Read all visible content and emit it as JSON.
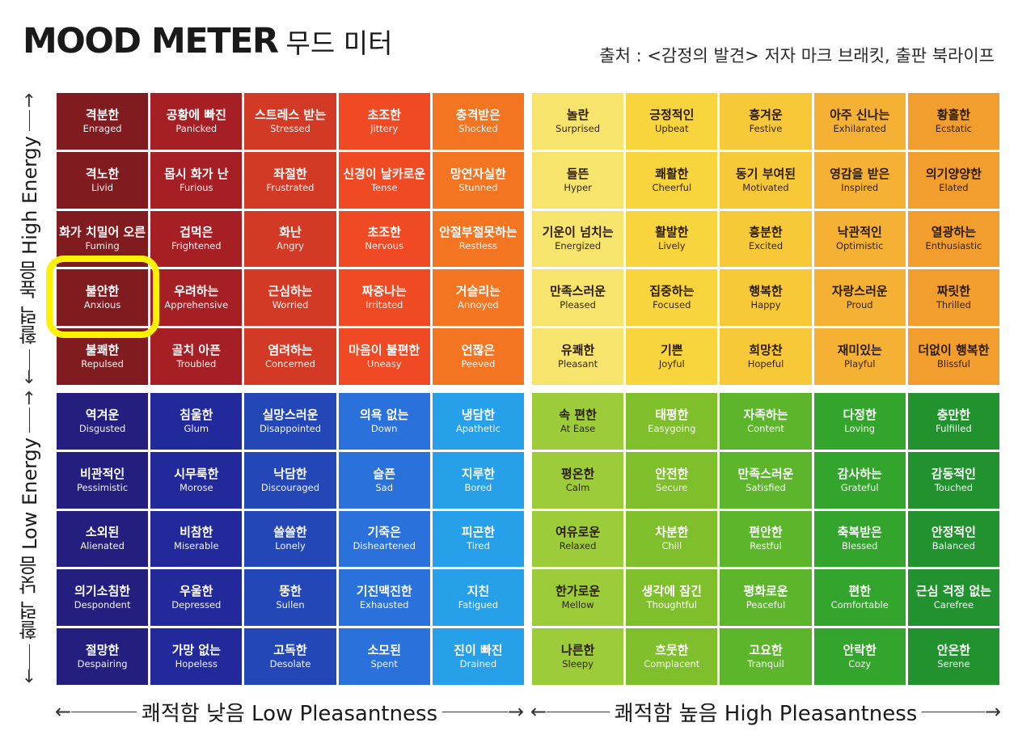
{
  "title": {
    "en": "MOOD METER",
    "ko": "무드 미터"
  },
  "source": "출처 : <감정의 발견> 저자 마크 브래킷, 출판 북라이프",
  "axes": {
    "low_pleasantness": "쾌적함 낮음 Low Pleasantness",
    "high_pleasantness": "쾌적함 높음  High Pleasantness",
    "high_energy": "활력 높음  High Energy",
    "low_energy": "활력 낮음  Low Energy",
    "arrow_left": "←",
    "arrow_right": "→",
    "arrow_up": "↑",
    "arrow_down": "↓"
  },
  "highlighted_cell": "불안한 Anxious",
  "quadrants": {
    "high_energy_low_pleasantness": [
      [
        {
          "ko": "격분한",
          "en": "Enraged",
          "color": "#801c20"
        },
        {
          "ko": "공황에 빠진",
          "en": "Panicked",
          "color": "#a61f24"
        },
        {
          "ko": "스트레스 받는",
          "en": "Stressed",
          "color": "#d23a26"
        },
        {
          "ko": "초조한",
          "en": "Jittery",
          "color": "#f04a25"
        },
        {
          "ko": "충격받은",
          "en": "Shocked",
          "color": "#f37522"
        }
      ],
      [
        {
          "ko": "격노한",
          "en": "Livid",
          "color": "#801c20"
        },
        {
          "ko": "몹시 화가 난",
          "en": "Furious",
          "color": "#a61f24"
        },
        {
          "ko": "좌절한",
          "en": "Frustrated",
          "color": "#d23a26"
        },
        {
          "ko": "신경이 날카로운",
          "en": "Tense",
          "color": "#f04a25"
        },
        {
          "ko": "망연자실한",
          "en": "Stunned",
          "color": "#f37522"
        }
      ],
      [
        {
          "ko": "화가 치밀어 오른",
          "en": "Fuming",
          "color": "#801c20"
        },
        {
          "ko": "겁먹은",
          "en": "Frightened",
          "color": "#a61f24"
        },
        {
          "ko": "화난",
          "en": "Angry",
          "color": "#d23a26"
        },
        {
          "ko": "초조한",
          "en": "Nervous",
          "color": "#f04a25"
        },
        {
          "ko": "안절부절못하는",
          "en": "Restless",
          "color": "#f37522"
        }
      ],
      [
        {
          "ko": "불안한",
          "en": "Anxious",
          "color": "#801c20"
        },
        {
          "ko": "우려하는",
          "en": "Apprehensive",
          "color": "#a61f24"
        },
        {
          "ko": "근심하는",
          "en": "Worried",
          "color": "#d23a26"
        },
        {
          "ko": "짜증나는",
          "en": "Irritated",
          "color": "#f04a25"
        },
        {
          "ko": "거슬리는",
          "en": "Annoyed",
          "color": "#f37522"
        }
      ],
      [
        {
          "ko": "불쾌한",
          "en": "Repulsed",
          "color": "#801c20"
        },
        {
          "ko": "골치 아픈",
          "en": "Troubled",
          "color": "#a61f24"
        },
        {
          "ko": "염려하는",
          "en": "Concerned",
          "color": "#d23a26"
        },
        {
          "ko": "마음이 불편한",
          "en": "Uneasy",
          "color": "#f04a25"
        },
        {
          "ko": "언짢은",
          "en": "Peeved",
          "color": "#f37522"
        }
      ]
    ],
    "high_energy_high_pleasantness": [
      [
        {
          "ko": "놀란",
          "en": "Surprised",
          "color": "#f7e46c"
        },
        {
          "ko": "긍정적인",
          "en": "Upbeat",
          "color": "#f8d53c"
        },
        {
          "ko": "흥겨운",
          "en": "Festive",
          "color": "#f7c837"
        },
        {
          "ko": "아주 신나는",
          "en": "Exhilarated",
          "color": "#f5b134"
        },
        {
          "ko": "황홀한",
          "en": "Ecstatic",
          "color": "#f29e2e"
        }
      ],
      [
        {
          "ko": "들뜬",
          "en": "Hyper",
          "color": "#f7e46c"
        },
        {
          "ko": "쾌활한",
          "en": "Cheerful",
          "color": "#f8d53c"
        },
        {
          "ko": "동기 부여된",
          "en": "Motivated",
          "color": "#f7c837"
        },
        {
          "ko": "영감을 받은",
          "en": "Inspired",
          "color": "#f5b134"
        },
        {
          "ko": "의기양양한",
          "en": "Elated",
          "color": "#f29e2e"
        }
      ],
      [
        {
          "ko": "기운이 넘치는",
          "en": "Energized",
          "color": "#f7e46c"
        },
        {
          "ko": "활발한",
          "en": "Lively",
          "color": "#f8d53c"
        },
        {
          "ko": "흥분한",
          "en": "Excited",
          "color": "#f7c837"
        },
        {
          "ko": "낙관적인",
          "en": "Optimistic",
          "color": "#f5b134"
        },
        {
          "ko": "열광하는",
          "en": "Enthusiastic",
          "color": "#f29e2e"
        }
      ],
      [
        {
          "ko": "만족스러운",
          "en": "Pleased",
          "color": "#f7e46c"
        },
        {
          "ko": "집중하는",
          "en": "Focused",
          "color": "#f8d53c"
        },
        {
          "ko": "행복한",
          "en": "Happy",
          "color": "#f7c837"
        },
        {
          "ko": "자랑스러운",
          "en": "Proud",
          "color": "#f5b134"
        },
        {
          "ko": "짜릿한",
          "en": "Thrilled",
          "color": "#f29e2e"
        }
      ],
      [
        {
          "ko": "유쾌한",
          "en": "Pleasant",
          "color": "#f7e46c"
        },
        {
          "ko": "기쁜",
          "en": "Joyful",
          "color": "#f8d53c"
        },
        {
          "ko": "희망찬",
          "en": "Hopeful",
          "color": "#f7c837"
        },
        {
          "ko": "재미있는",
          "en": "Playful",
          "color": "#f5b134"
        },
        {
          "ko": "더없이 행복한",
          "en": "Blissful",
          "color": "#f29e2e"
        }
      ]
    ],
    "low_energy_low_pleasantness": [
      [
        {
          "ko": "역겨운",
          "en": "Disgusted",
          "color": "#241f7e"
        },
        {
          "ko": "침울한",
          "en": "Glum",
          "color": "#22299a"
        },
        {
          "ko": "실망스러운",
          "en": "Disappointed",
          "color": "#2447b8"
        },
        {
          "ko": "의욕 없는",
          "en": "Down",
          "color": "#2a71dc"
        },
        {
          "ko": "냉담한",
          "en": "Apathetic",
          "color": "#27a0ea"
        }
      ],
      [
        {
          "ko": "비관적인",
          "en": "Pessimistic",
          "color": "#241f7e"
        },
        {
          "ko": "시무룩한",
          "en": "Morose",
          "color": "#22299a"
        },
        {
          "ko": "낙담한",
          "en": "Discouraged",
          "color": "#2447b8"
        },
        {
          "ko": "슬픈",
          "en": "Sad",
          "color": "#2a71dc"
        },
        {
          "ko": "지루한",
          "en": "Bored",
          "color": "#27a0ea"
        }
      ],
      [
        {
          "ko": "소외된",
          "en": "Alienated",
          "color": "#241f7e"
        },
        {
          "ko": "비참한",
          "en": "Miserable",
          "color": "#22299a"
        },
        {
          "ko": "쓸쓸한",
          "en": "Lonely",
          "color": "#2447b8"
        },
        {
          "ko": "기죽은",
          "en": "Disheartened",
          "color": "#2a71dc"
        },
        {
          "ko": "피곤한",
          "en": "Tired",
          "color": "#27a0ea"
        }
      ],
      [
        {
          "ko": "의기소침한",
          "en": "Despondent",
          "color": "#241f7e"
        },
        {
          "ko": "우울한",
          "en": "Depressed",
          "color": "#22299a"
        },
        {
          "ko": "뚱한",
          "en": "Sullen",
          "color": "#2447b8"
        },
        {
          "ko": "기진맥진한",
          "en": "Exhausted",
          "color": "#2a71dc"
        },
        {
          "ko": "지친",
          "en": "Fatigued",
          "color": "#27a0ea"
        }
      ],
      [
        {
          "ko": "절망한",
          "en": "Despairing",
          "color": "#241f7e"
        },
        {
          "ko": "가망 없는",
          "en": "Hopeless",
          "color": "#22299a"
        },
        {
          "ko": "고독한",
          "en": "Desolate",
          "color": "#2447b8"
        },
        {
          "ko": "소모된",
          "en": "Spent",
          "color": "#2a71dc"
        },
        {
          "ko": "진이 빠진",
          "en": "Drained",
          "color": "#27a0ea"
        }
      ]
    ],
    "low_energy_high_pleasantness": [
      [
        {
          "ko": "속 편한",
          "en": "At Ease",
          "color": "#9dcc3a"
        },
        {
          "ko": "태평한",
          "en": "Easygoing",
          "color": "#7fbf2c"
        },
        {
          "ko": "자족하는",
          "en": "Content",
          "color": "#5cb52a"
        },
        {
          "ko": "다정한",
          "en": "Loving",
          "color": "#34a52c"
        },
        {
          "ko": "충만한",
          "en": "Fulfilled",
          "color": "#22922e"
        }
      ],
      [
        {
          "ko": "평온한",
          "en": "Calm",
          "color": "#9dcc3a"
        },
        {
          "ko": "안전한",
          "en": "Secure",
          "color": "#7fbf2c"
        },
        {
          "ko": "만족스러운",
          "en": "Satisfied",
          "color": "#5cb52a"
        },
        {
          "ko": "감사하는",
          "en": "Grateful",
          "color": "#34a52c"
        },
        {
          "ko": "감동적인",
          "en": "Touched",
          "color": "#22922e"
        }
      ],
      [
        {
          "ko": "여유로운",
          "en": "Relaxed",
          "color": "#9dcc3a"
        },
        {
          "ko": "차분한",
          "en": "Chill",
          "color": "#7fbf2c"
        },
        {
          "ko": "편안한",
          "en": "Restful",
          "color": "#5cb52a"
        },
        {
          "ko": "축복받은",
          "en": "Blessed",
          "color": "#34a52c"
        },
        {
          "ko": "안정적인",
          "en": "Balanced",
          "color": "#22922e"
        }
      ],
      [
        {
          "ko": "한가로운",
          "en": "Mellow",
          "color": "#9dcc3a"
        },
        {
          "ko": "생각에 잠긴",
          "en": "Thoughtful",
          "color": "#7fbf2c"
        },
        {
          "ko": "평화로운",
          "en": "Peaceful",
          "color": "#5cb52a"
        },
        {
          "ko": "편한",
          "en": "Comfortable",
          "color": "#34a52c"
        },
        {
          "ko": "근심 걱정 없는",
          "en": "Carefree",
          "color": "#22922e"
        }
      ],
      [
        {
          "ko": "나른한",
          "en": "Sleepy",
          "color": "#9dcc3a"
        },
        {
          "ko": "흐뭇한",
          "en": "Complacent",
          "color": "#7fbf2c"
        },
        {
          "ko": "고요한",
          "en": "Tranquil",
          "color": "#5cb52a"
        },
        {
          "ko": "안락한",
          "en": "Cozy",
          "color": "#34a52c"
        },
        {
          "ko": "안온한",
          "en": "Serene",
          "color": "#22922e"
        }
      ]
    ]
  }
}
